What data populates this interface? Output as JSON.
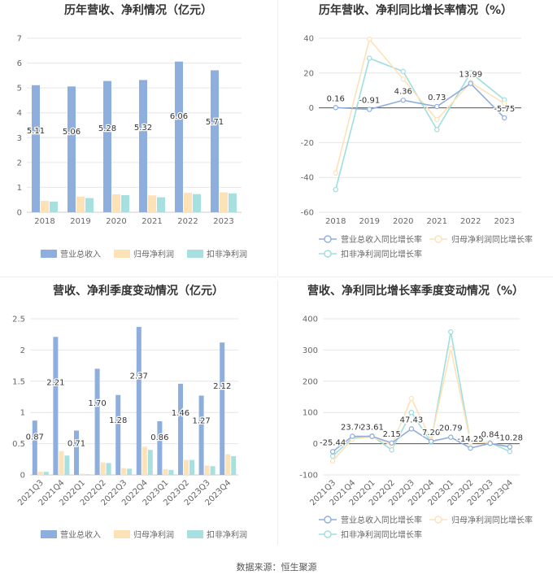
{
  "colors": {
    "revenue": "#8eaedd",
    "net_profit": "#fde2b8",
    "deducted_profit": "#a8e0e0",
    "line_revenue": "#8eaedd",
    "line_net": "#fde2b8",
    "line_deducted": "#9edede"
  },
  "footer": "数据来源：恒生聚源",
  "chart_data": [
    {
      "id": "annual_values",
      "type": "bar",
      "title": "历年营收、净利情况（亿元）",
      "categories": [
        "2018",
        "2019",
        "2020",
        "2021",
        "2022",
        "2023"
      ],
      "ylim": [
        0,
        7
      ],
      "yticks": [
        0,
        1,
        2,
        3,
        4,
        5,
        6,
        7
      ],
      "series": [
        {
          "name": "营业总收入",
          "values": [
            5.11,
            5.06,
            5.28,
            5.32,
            6.06,
            5.71
          ],
          "labels": [
            "5.11",
            "5.06",
            "5.28",
            "5.32",
            "6.06",
            "5.71"
          ]
        },
        {
          "name": "归母净利润",
          "values": [
            0.46,
            0.63,
            0.72,
            0.68,
            0.78,
            0.8
          ]
        },
        {
          "name": "扣非净利润",
          "values": [
            0.43,
            0.57,
            0.69,
            0.6,
            0.73,
            0.76
          ]
        }
      ],
      "legend_position": "bottom"
    },
    {
      "id": "annual_growth",
      "type": "line",
      "title": "历年营收、净利同比增长率情况（%）",
      "categories": [
        "2018",
        "2019",
        "2020",
        "2021",
        "2022",
        "2023"
      ],
      "ylim": [
        -60,
        40
      ],
      "yticks": [
        -60,
        -40,
        -20,
        0,
        20,
        40
      ],
      "series": [
        {
          "name": "营业总收入同比增长率",
          "values": [
            0.16,
            -0.91,
            4.36,
            0.73,
            13.99,
            -5.75
          ],
          "labels": [
            "0.16",
            "-0.91",
            "4.36",
            "0.73",
            "13.99",
            "-5.75"
          ]
        },
        {
          "name": "归母净利润同比增长率",
          "values": [
            -37.5,
            39.4,
            16.5,
            -6.8,
            14.6,
            2.5
          ]
        },
        {
          "name": "扣非净利润同比增长率",
          "values": [
            -47.0,
            28.5,
            20.9,
            -12.5,
            20.2,
            4.6
          ]
        }
      ],
      "legend_position": "bottom"
    },
    {
      "id": "quarterly_values",
      "type": "bar",
      "title": "营收、净利季度变动情况（亿元）",
      "categories": [
        "2021Q3",
        "2021Q4",
        "2022Q1",
        "2022Q2",
        "2022Q3",
        "2022Q4",
        "2023Q1",
        "2023Q2",
        "2023Q3",
        "2023Q4"
      ],
      "ylim": [
        0,
        2.5
      ],
      "yticks": [
        0,
        0.5,
        1,
        1.5,
        2,
        2.5
      ],
      "series": [
        {
          "name": "营业总收入",
          "values": [
            0.87,
            2.21,
            0.71,
            1.7,
            1.28,
            2.37,
            0.86,
            1.46,
            1.27,
            2.12
          ],
          "labels": [
            "0.87",
            "2.21",
            "0.71",
            "1.70",
            "1.28",
            "2.37",
            "0.86",
            "1.46",
            "1.27",
            "2.12"
          ]
        },
        {
          "name": "归母净利润",
          "values": [
            0.05,
            0.38,
            0.02,
            0.2,
            0.11,
            0.45,
            0.09,
            0.24,
            0.15,
            0.33
          ]
        },
        {
          "name": "扣非净利润",
          "values": [
            0.05,
            0.31,
            0.01,
            0.19,
            0.1,
            0.4,
            0.08,
            0.24,
            0.14,
            0.3
          ]
        }
      ],
      "legend_position": "bottom"
    },
    {
      "id": "quarterly_growth",
      "type": "line",
      "title": "营收、净利同比增长率季度变动情况（%）",
      "categories": [
        "2021Q3",
        "2021Q4",
        "2022Q1",
        "2022Q2",
        "2022Q3",
        "2022Q4",
        "2023Q1",
        "2023Q2",
        "2023Q3",
        "2023Q4"
      ],
      "ylim": [
        -100,
        400
      ],
      "yticks": [
        -100,
        0,
        100,
        200,
        300,
        400
      ],
      "series": [
        {
          "name": "营业总收入同比增长率",
          "values": [
            -25.44,
            23.7,
            23.61,
            2.15,
            47.43,
            7.2,
            20.79,
            -14.25,
            0.84,
            -10.28
          ],
          "labels": [
            "-25.44",
            "23.70",
            "23.61",
            "2.15",
            "47.43",
            "7.20",
            "20.79",
            "-14.25",
            "0.84",
            "-10.28"
          ]
        },
        {
          "name": "归母净利润同比增长率",
          "values": [
            -55,
            15,
            22,
            -5,
            145,
            12,
            305,
            5,
            2,
            -10
          ]
        },
        {
          "name": "扣非净利润同比增长率",
          "values": [
            -40,
            18,
            25,
            -20,
            100,
            5,
            358,
            5,
            3,
            -25
          ]
        }
      ],
      "legend_position": "bottom"
    }
  ]
}
